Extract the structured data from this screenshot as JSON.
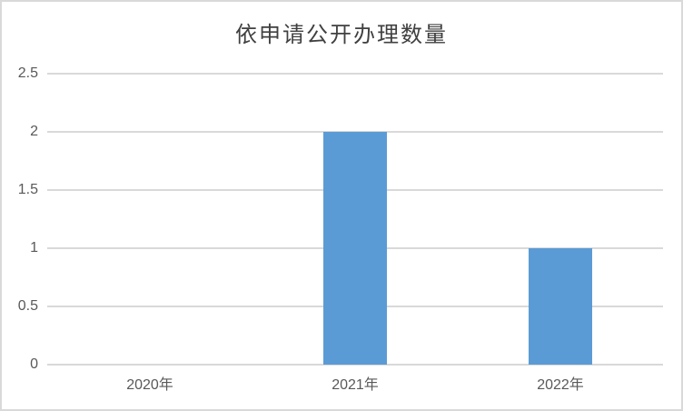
{
  "chart_data": {
    "type": "bar",
    "title": "依申请公开办理数量",
    "categories": [
      "2020年",
      "2021年",
      "2022年"
    ],
    "values": [
      0,
      2,
      1
    ],
    "series": [
      {
        "name": "依申请公开办理数量",
        "values": [
          0,
          2,
          1
        ]
      }
    ],
    "xlabel": "",
    "ylabel": "",
    "ylim": [
      0,
      2.5
    ],
    "yticks": [
      0,
      0.5,
      1,
      1.5,
      2,
      2.5
    ],
    "ytick_labels": [
      "0",
      "0.5",
      "1",
      "1.5",
      "2",
      "2.5"
    ],
    "grid": true,
    "legend_position": "none",
    "colors": {
      "bar": "#5B9BD5",
      "gridline": "#D9D9D9",
      "border": "#D9D9D9",
      "axis_text": "#595959",
      "title_text": "#404040",
      "background": "#FFFFFF"
    }
  }
}
